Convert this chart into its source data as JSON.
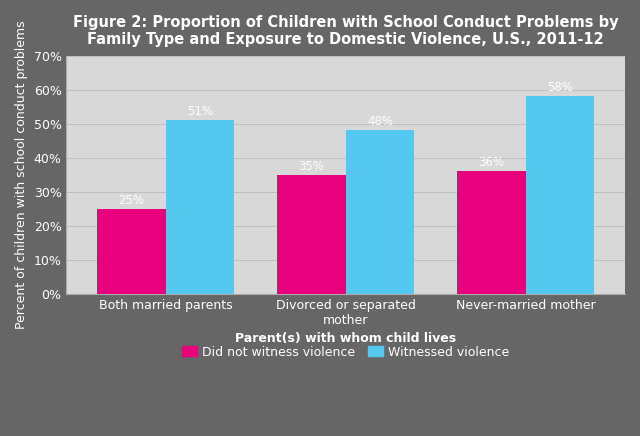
{
  "title": "Figure 2: Proportion of Children with School Conduct Problems by\nFamily Type and Exposure to Domestic Violence, U.S., 2011-12",
  "categories": [
    "Both married parents",
    "Divorced or separated\nmother",
    "Never-married mother"
  ],
  "did_not_witness": [
    25,
    35,
    36
  ],
  "witnessed": [
    51,
    48,
    58
  ],
  "color_did_not": "#E8007D",
  "color_witnessed": "#55C8F0",
  "xlabel": "Parent(s) with whom child lives",
  "ylabel": "Percent of children with school conduct problems",
  "ylim": [
    0,
    70
  ],
  "yticks": [
    0,
    10,
    20,
    30,
    40,
    50,
    60,
    70
  ],
  "ytick_labels": [
    "0%",
    "10%",
    "20%",
    "30%",
    "40%",
    "50%",
    "60%",
    "70%"
  ],
  "outer_bg_color": "#666666",
  "plot_bg_color": "#D8D8D8",
  "legend_did_not": "Did not witness violence",
  "legend_witnessed": "Witnessed violence",
  "title_fontsize": 10.5,
  "label_fontsize": 9,
  "tick_fontsize": 9,
  "bar_value_fontsize": 8.5,
  "legend_fontsize": 9,
  "bar_width": 0.38,
  "text_color": "#FFFFFF",
  "axis_text_color": "#FFFFFF",
  "grid_color": "#BBBBBB"
}
